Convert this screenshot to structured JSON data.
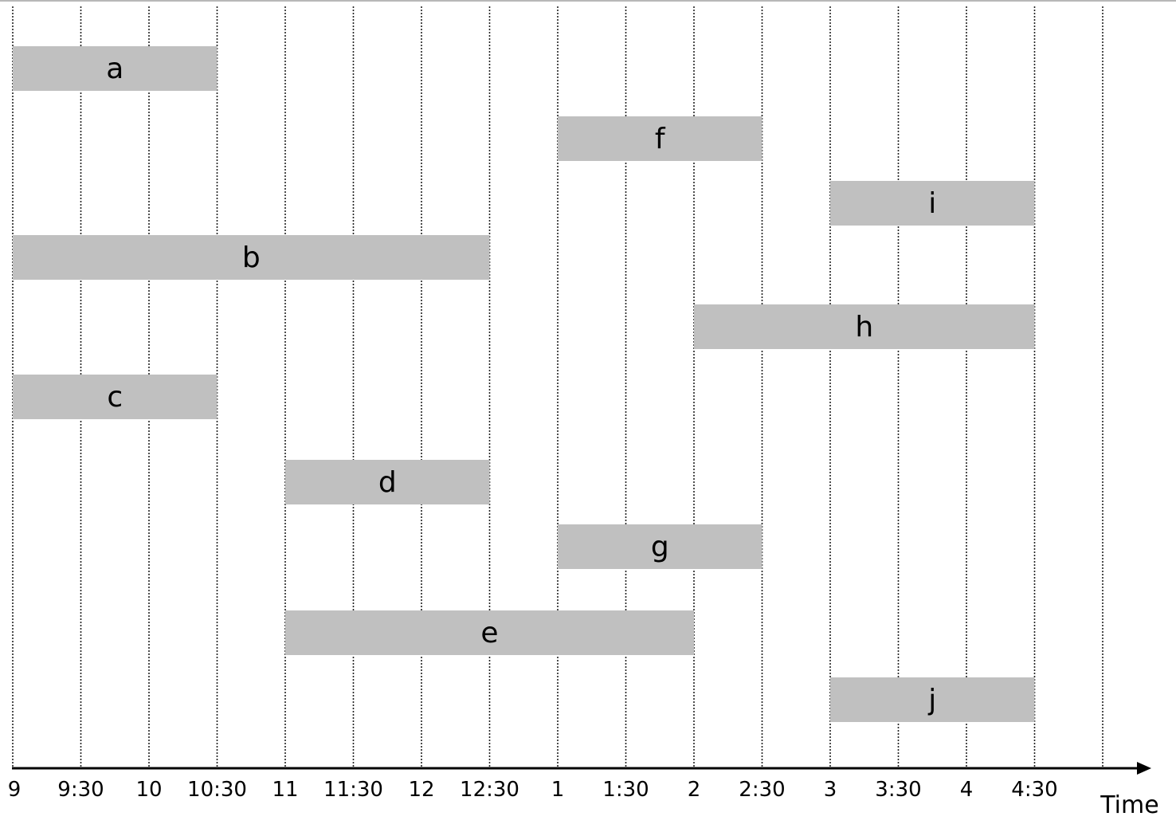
{
  "chart_data": {
    "type": "interval-schedule",
    "xlabel": "Time",
    "ticks": [
      "9",
      "9:30",
      "10",
      "10:30",
      "11",
      "11:30",
      "12",
      "12:30",
      "1",
      "1:30",
      "2",
      "2:30",
      "3",
      "3:30",
      "4",
      "4:30"
    ],
    "intervals": [
      {
        "label": "a",
        "start": "9",
        "end": "10:30"
      },
      {
        "label": "f",
        "start": "1",
        "end": "2:30"
      },
      {
        "label": "i",
        "start": "3",
        "end": "4:30"
      },
      {
        "label": "b",
        "start": "9",
        "end": "12:30"
      },
      {
        "label": "h",
        "start": "2",
        "end": "4:30"
      },
      {
        "label": "c",
        "start": "9",
        "end": "10:30"
      },
      {
        "label": "d",
        "start": "11",
        "end": "12:30"
      },
      {
        "label": "g",
        "start": "1",
        "end": "2:30"
      },
      {
        "label": "e",
        "start": "11",
        "end": "2"
      },
      {
        "label": "j",
        "start": "3",
        "end": "4:30"
      }
    ],
    "bar_color": "#c0c0c0"
  }
}
